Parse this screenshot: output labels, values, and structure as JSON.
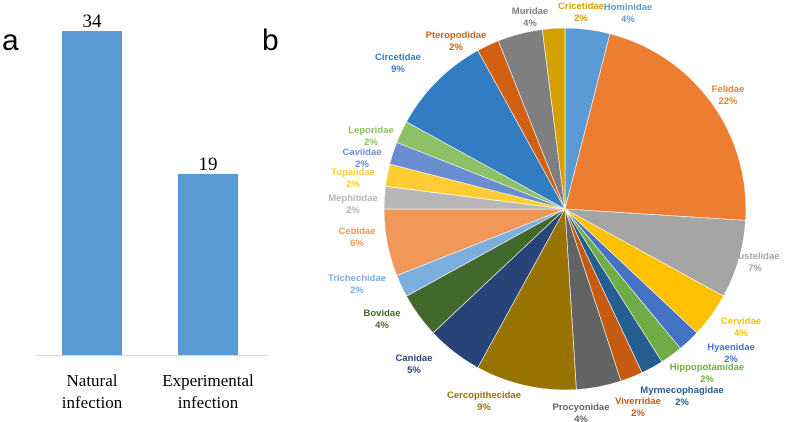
{
  "panels": {
    "a": "a",
    "b": "b"
  },
  "chart_data": [
    {
      "type": "bar",
      "categories": [
        "Natural\ninfection",
        "Experimental\ninfection"
      ],
      "values": [
        34,
        19
      ],
      "ylim": [
        0,
        34
      ],
      "color": "#5b9bd5"
    },
    {
      "type": "pie",
      "start_angle_deg": 0,
      "direction": "clockwise",
      "slices": [
        {
          "name": "Hominidae",
          "value": 4,
          "label": "4%",
          "color": "#5b9bd5"
        },
        {
          "name": "Felidae",
          "value": 22,
          "label": "22%",
          "color": "#ed7d31"
        },
        {
          "name": "Mustelidae",
          "value": 7,
          "label": "7%",
          "color": "#a5a5a5"
        },
        {
          "name": "Cervidae",
          "value": 4,
          "label": "4%",
          "color": "#ffc000"
        },
        {
          "name": "Hyaenidae",
          "value": 2,
          "label": "2%",
          "color": "#4472c4"
        },
        {
          "name": "Hippopotamidae",
          "value": 2,
          "label": "2%",
          "color": "#70ad47"
        },
        {
          "name": "Myrmecophagidae",
          "value": 2,
          "label": "2%",
          "color": "#255e91"
        },
        {
          "name": "Viverridae",
          "value": 2,
          "label": "2%",
          "color": "#c55a11"
        },
        {
          "name": "Procyonidae",
          "value": 4,
          "label": "4%",
          "color": "#636363"
        },
        {
          "name": "Cercopithecidae",
          "value": 9,
          "label": "9%",
          "color": "#997300"
        },
        {
          "name": "Canidae",
          "value": 5,
          "label": "5%",
          "color": "#264478"
        },
        {
          "name": "Bovidae",
          "value": 4,
          "label": "4%",
          "color": "#43682b"
        },
        {
          "name": "Trichechidae",
          "value": 2,
          "label": "2%",
          "color": "#7cafdd"
        },
        {
          "name": "Cebidae",
          "value": 6,
          "label": "6%",
          "color": "#f1975a"
        },
        {
          "name": "Mephitidae",
          "value": 2,
          "label": "2%",
          "color": "#b7b7b7"
        },
        {
          "name": "Tupaiidae",
          "value": 2,
          "label": "2%",
          "color": "#ffcd33"
        },
        {
          "name": "Caviidae",
          "value": 2,
          "label": "2%",
          "color": "#698ed0"
        },
        {
          "name": "Leporidae",
          "value": 2,
          "label": "2%",
          "color": "#8cc168"
        },
        {
          "name": "Circetidae",
          "value": 9,
          "label": "9%",
          "color": "#327dc2"
        },
        {
          "name": "Pteropodidae",
          "value": 2,
          "label": "2%",
          "color": "#d26012"
        },
        {
          "name": "Muridae",
          "value": 4,
          "label": "4%",
          "color": "#7f7f7f"
        },
        {
          "name": "Cricetidae",
          "value": 2,
          "label": "2%",
          "color": "#d4a000"
        }
      ]
    }
  ]
}
